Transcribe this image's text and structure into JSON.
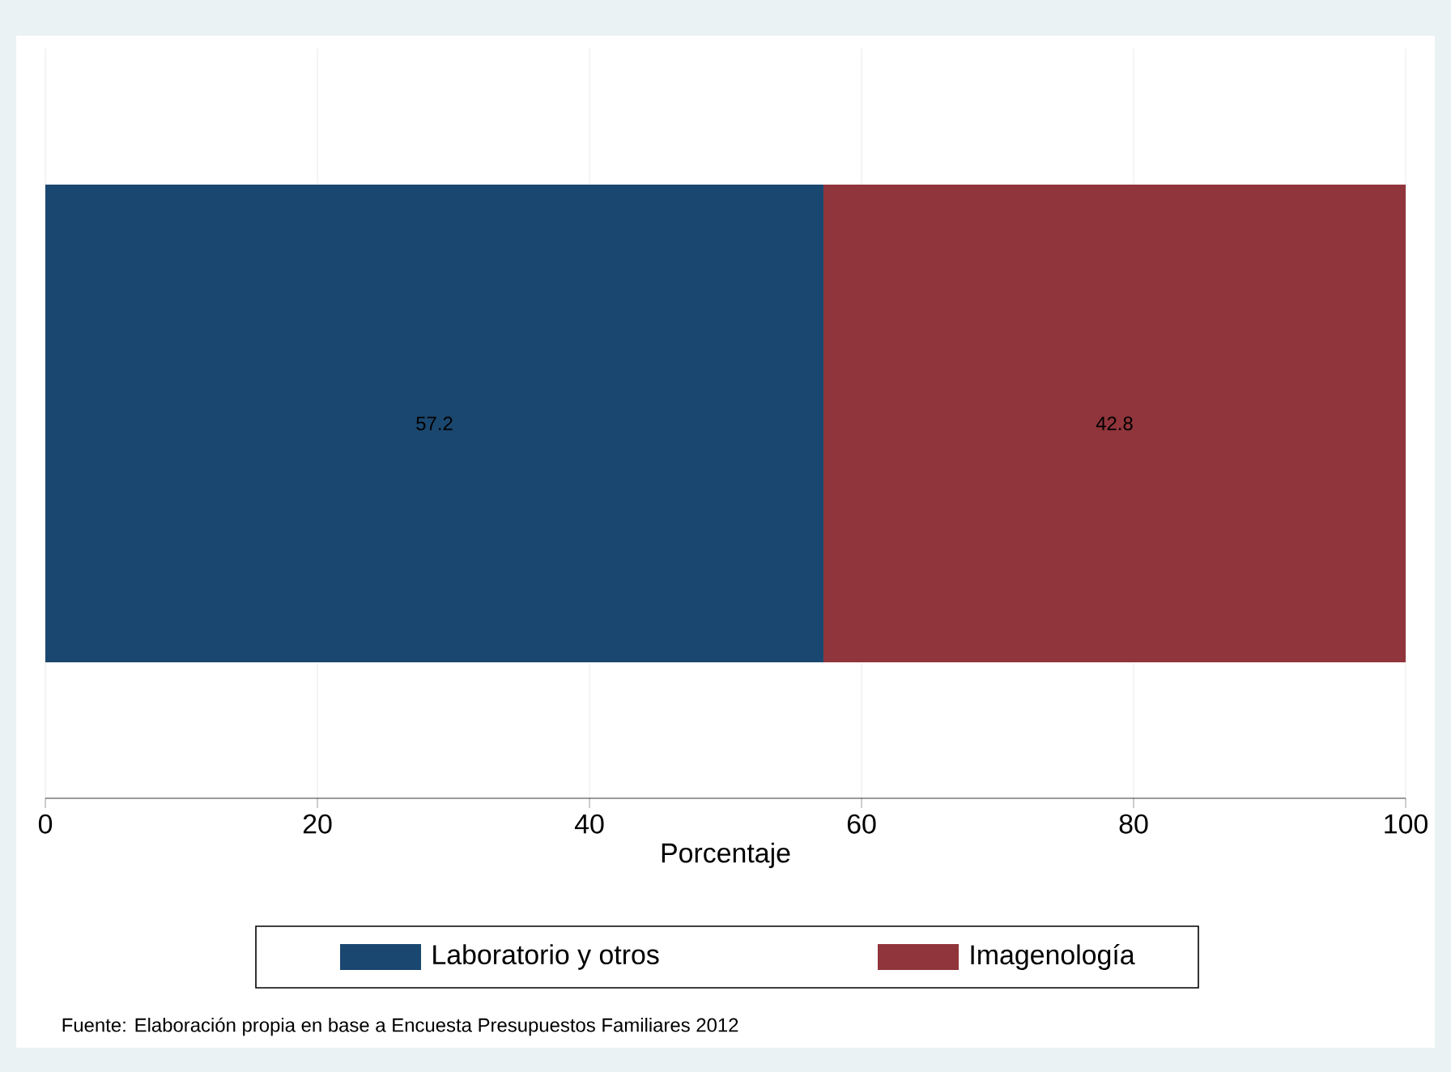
{
  "chart_data": {
    "type": "bar",
    "orientation": "horizontal",
    "stacked": true,
    "categories": [
      null
    ],
    "series": [
      {
        "name": "Laboratorio y otros",
        "color": "#1a476f",
        "values": [
          57.2
        ]
      },
      {
        "name": "Imagenología",
        "color": "#90353b",
        "values": [
          42.8
        ]
      }
    ],
    "xlabel": "Porcentaje",
    "xlim": [
      0,
      100
    ],
    "xticks": [
      0,
      20,
      40,
      60,
      80,
      100
    ],
    "grid": "x",
    "legend": "bottom",
    "data_labels": true,
    "annotations": [
      "Fuente: Elaboración propia en base a Encuesta Presupuestos Familiares 2012"
    ]
  }
}
